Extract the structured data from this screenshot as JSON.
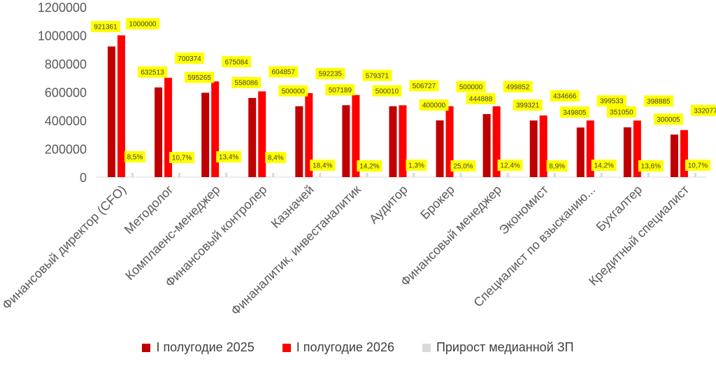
{
  "chart_data": {
    "type": "bar",
    "categories": [
      "Финансовый директор (CFO)",
      "Методолог",
      "Комплаенс-менеджер",
      "Финансовый контролер",
      "Казначей",
      "Финаналитик, инвестаналитик",
      "Аудитор",
      "Брокер",
      "Финансовый менеджер",
      "Экономист",
      "Специалист по взысканию...",
      "Бухгалтер",
      "Кредитный специалист"
    ],
    "series": [
      {
        "name": "I полугодие 2025",
        "color": "#c00000",
        "values": [
          921361,
          632513,
          595265,
          558086,
          500000,
          507189,
          500010,
          400000,
          444888,
          399321,
          349805,
          351050,
          300005
        ],
        "labels": [
          "921361",
          "632513",
          "595265",
          "558086",
          "500000",
          "507189",
          "500010",
          "400000",
          "444888",
          "399321",
          "349805",
          "351050",
          "300005"
        ]
      },
      {
        "name": "I полугодие 2026",
        "color": "#ff0000",
        "values": [
          1000000,
          700374,
          675084,
          604857,
          592235,
          579371,
          506727,
          500000,
          499852,
          434666,
          399533,
          398885,
          332077
        ],
        "labels": [
          "1000000",
          "700374",
          "675084",
          "604857",
          "592235",
          "579371",
          "506727",
          "500000",
          "499852",
          "434666",
          "399533",
          "398885",
          "332077"
        ]
      },
      {
        "name": "Прирост медианной ЗП",
        "color": "#d9d9d9",
        "values": [
          8.5,
          10.7,
          13.4,
          8.4,
          18.4,
          14.2,
          1.3,
          25.0,
          12.4,
          8.9,
          14.2,
          13.6,
          10.7
        ],
        "labels": [
          "8,5%",
          "10,7%",
          "13,4%",
          "8,4%",
          "18,4%",
          "14,2%",
          "1,3%",
          "25,0%",
          "12,4%",
          "8,9%",
          "14,2%",
          "13,6%",
          "10,7%"
        ]
      }
    ],
    "yticks": [
      "0",
      "200000",
      "400000",
      "600000",
      "800000",
      "1000000",
      "1200000"
    ],
    "ylim": [
      0,
      1200000
    ],
    "label_bg": "#ffff00",
    "legend_position": "bottom",
    "grid": false
  }
}
